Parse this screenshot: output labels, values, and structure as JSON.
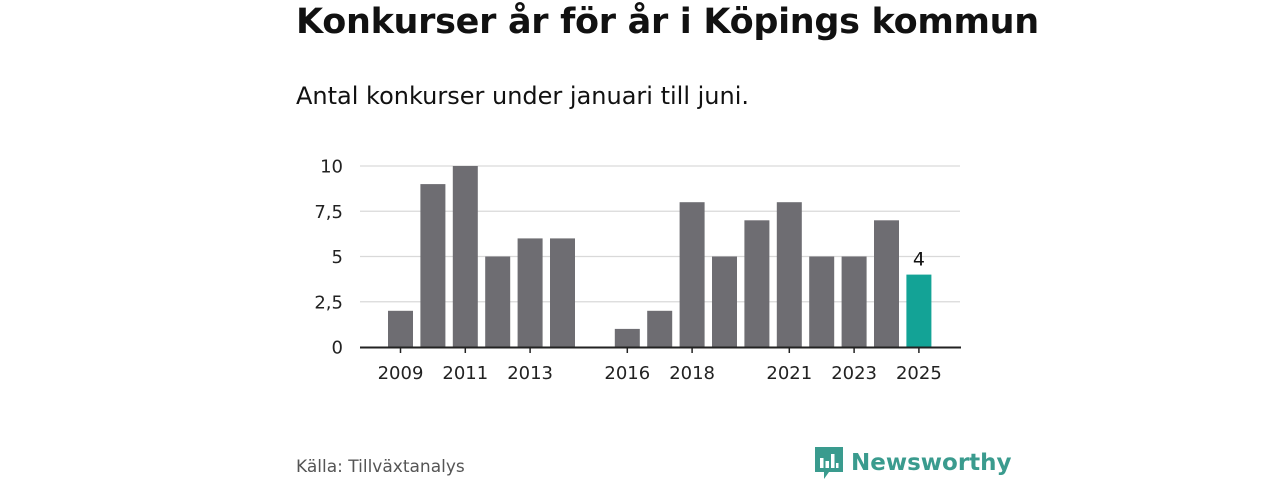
{
  "chart_data": {
    "type": "bar",
    "title": "Konkurser år för år i Köpings kommun",
    "subtitle": "Antal konkurser under januari till juni.",
    "categories": [
      "2009",
      "2010",
      "2011",
      "2012",
      "2013",
      "2014",
      "2015",
      "2016",
      "2017",
      "2018",
      "2019",
      "2020",
      "2021",
      "2022",
      "2023",
      "2024",
      "2025"
    ],
    "values": [
      2,
      9,
      10,
      5,
      6,
      6,
      null,
      1,
      2,
      8,
      5,
      7,
      8,
      5,
      5,
      7,
      4
    ],
    "x_tick_labels": [
      "2009",
      "2011",
      "2013",
      "2016",
      "2018",
      "2021",
      "2023",
      "2025"
    ],
    "y_ticks": [
      {
        "value": 0,
        "label": "0"
      },
      {
        "value": 2.5,
        "label": "2,5"
      },
      {
        "value": 5,
        "label": "5"
      },
      {
        "value": 7.5,
        "label": "7,5"
      },
      {
        "value": 10,
        "label": "10"
      }
    ],
    "ylim": [
      0,
      10
    ],
    "grid": true,
    "highlight": {
      "category": "2025",
      "label": "4"
    },
    "colors": {
      "bar": "#6e6d72",
      "highlight": "#13a396",
      "grid": "#d9d9d9",
      "axis": "#222222"
    }
  },
  "footer": {
    "source": "Källa: Tillväxtanalys",
    "brand": "Newsworthy",
    "brand_icon": "newsworthy-logo-icon",
    "brand_color": "#3a9b8e"
  }
}
